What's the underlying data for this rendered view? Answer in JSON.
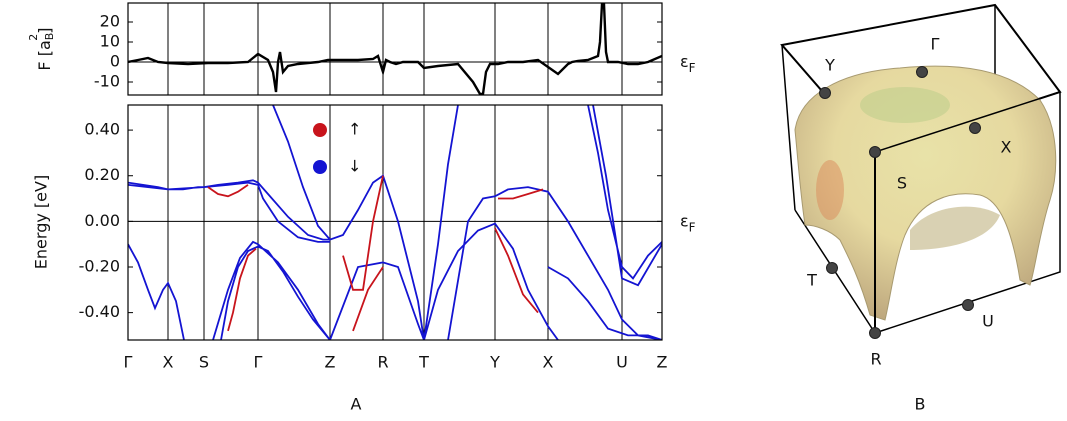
{
  "chart_data": [
    {
      "type": "line",
      "ylabel": {
        "text": "F [a",
        "sub": "B",
        "sup": "2",
        "close": "]"
      },
      "fermi_label": {
        "symbol": "ε",
        "sub": "F"
      },
      "xlim": [
        0,
        534
      ],
      "ylim": [
        -16.5,
        29.5
      ],
      "yticks": [
        -10,
        0,
        10,
        20
      ],
      "series": [
        {
          "color": "#000000",
          "x": [
            0,
            10,
            20,
            30,
            40,
            60,
            80,
            100,
            120,
            130,
            140,
            145,
            148,
            150,
            152,
            155,
            160,
            170,
            190,
            200,
            210,
            230,
            245,
            250,
            255,
            258,
            262,
            268,
            275,
            290,
            296,
            310,
            330,
            345,
            352,
            355,
            358,
            362,
            370,
            380,
            395,
            410,
            430,
            440,
            444,
            450,
            460,
            470,
            472,
            474,
            476,
            478,
            480,
            490,
            500,
            510,
            520,
            534
          ],
          "values": [
            0,
            1,
            2,
            0,
            -0.5,
            -1,
            -0.5,
            -0.5,
            0,
            4,
            1,
            -5,
            -15,
            0,
            5,
            -5,
            -2,
            -1,
            0,
            1,
            1,
            1,
            1.5,
            3,
            -5,
            1,
            0,
            -1,
            0,
            0,
            -3,
            -2,
            -1,
            -10,
            -16,
            -16,
            -5,
            -1,
            -1,
            0,
            0,
            1,
            -6,
            -1,
            0,
            0.5,
            1,
            3,
            10,
            29,
            29,
            5,
            0,
            0,
            -1,
            -1,
            0,
            3
          ]
        }
      ]
    },
    {
      "type": "line",
      "ylabel": "Energy  [eV]",
      "fermi_label": {
        "symbol": "ε",
        "sub": "F"
      },
      "xlim": [
        0,
        534
      ],
      "ylim": [
        -0.52,
        0.51
      ],
      "xticks": [
        {
          "value": 0,
          "label": "Γ"
        },
        {
          "value": 40,
          "label": "X"
        },
        {
          "value": 76,
          "label": "S"
        },
        {
          "value": 130,
          "label": "Γ"
        },
        {
          "value": 202,
          "label": "Z"
        },
        {
          "value": 255,
          "label": "R"
        },
        {
          "value": 296,
          "label": "T"
        },
        {
          "value": 367,
          "label": "Y"
        },
        {
          "value": 420,
          "label": "X"
        },
        {
          "value": 494,
          "label": "U"
        },
        {
          "value": 534,
          "label": "Z"
        }
      ],
      "yticks": [
        {
          "value": -0.4,
          "label": "-0.40"
        },
        {
          "value": -0.2,
          "label": "-0.20"
        },
        {
          "value": 0,
          "label": "0.00"
        },
        {
          "value": 0.2,
          "label": "0.20"
        },
        {
          "value": 0.4,
          "label": "0.40"
        }
      ],
      "series": [
        {
          "name": "↓",
          "color": "#1414d2",
          "x": [
            0,
            15,
            30,
            40,
            55,
            70,
            76,
            90,
            110,
            125,
            130,
            140,
            160,
            180,
            195,
            202,
            null,
            0,
            20,
            40,
            76,
            100,
            120,
            130,
            135,
            150,
            170,
            190,
            202,
            null,
            145,
            160,
            175,
            190,
            202,
            215,
            230,
            245,
            255,
            270,
            290,
            296,
            null,
            0,
            10,
            20,
            27,
            35,
            40,
            48,
            56,
            null,
            93,
            100,
            110,
            120,
            130,
            140,
            155,
            170,
            185,
            202,
            null,
            85,
            100,
            112,
            125,
            130,
            150,
            170,
            190,
            202,
            null,
            202,
            230,
            255,
            270,
            290,
            296,
            null,
            296,
            310,
            320,
            330,
            null,
            296,
            310,
            330,
            350,
            367,
            385,
            400,
            420,
            430,
            null,
            320,
            340,
            355,
            367,
            380,
            400,
            420,
            440,
            460,
            480,
            494,
            510,
            534,
            null,
            460,
            470,
            480,
            494,
            505,
            520,
            534,
            null,
            465,
            478,
            494,
            510,
            534,
            null,
            420,
            440,
            460,
            480,
            500,
            520,
            534
          ],
          "values": [
            0.17,
            0.16,
            0.15,
            0.14,
            0.14,
            0.15,
            0.15,
            0.16,
            0.17,
            0.18,
            0.17,
            0.12,
            0.02,
            -0.06,
            -0.08,
            -0.08,
            null,
            0.16,
            0.15,
            0.14,
            0.15,
            0.16,
            0.17,
            0.16,
            0.1,
            0.0,
            -0.07,
            -0.09,
            -0.09,
            null,
            0.51,
            0.35,
            0.15,
            -0.02,
            -0.08,
            -0.06,
            0.05,
            0.17,
            0.2,
            0.0,
            -0.35,
            -0.52,
            null,
            -0.1,
            -0.18,
            -0.3,
            -0.38,
            -0.3,
            -0.27,
            -0.35,
            -0.52,
            null,
            -0.52,
            -0.35,
            -0.2,
            -0.13,
            -0.11,
            -0.13,
            -0.22,
            -0.33,
            -0.43,
            -0.52,
            null,
            -0.52,
            -0.3,
            -0.16,
            -0.09,
            -0.1,
            -0.18,
            -0.3,
            -0.45,
            -0.52,
            null,
            -0.52,
            -0.2,
            -0.18,
            -0.2,
            -0.45,
            -0.52,
            null,
            -0.52,
            -0.1,
            0.25,
            0.51,
            null,
            -0.52,
            -0.3,
            -0.13,
            -0.04,
            -0.01,
            -0.12,
            -0.3,
            -0.46,
            -0.52,
            null,
            -0.52,
            0.0,
            0.1,
            0.11,
            0.14,
            0.15,
            0.13,
            0.0,
            -0.15,
            -0.3,
            -0.43,
            -0.5,
            -0.52,
            null,
            0.51,
            0.3,
            0.05,
            -0.2,
            -0.25,
            -0.15,
            -0.09,
            null,
            0.51,
            0.2,
            -0.25,
            -0.28,
            -0.1,
            null,
            -0.2,
            -0.25,
            -0.35,
            -0.47,
            -0.5,
            -0.5,
            -0.52
          ]
        },
        {
          "name": "↑",
          "color": "#c8141c",
          "x": [
            80,
            90,
            100,
            110,
            120,
            null,
            100,
            105,
            112,
            120,
            128,
            null,
            215,
            225,
            235,
            245,
            255,
            null,
            225,
            240,
            255,
            null,
            367,
            380,
            395,
            410,
            null,
            370,
            385,
            400,
            415
          ],
          "values": [
            0.15,
            0.12,
            0.11,
            0.13,
            0.16,
            null,
            -0.48,
            -0.4,
            -0.25,
            -0.15,
            -0.12,
            null,
            -0.15,
            -0.3,
            -0.3,
            0.0,
            0.2,
            null,
            -0.48,
            -0.3,
            -0.2,
            null,
            -0.03,
            -0.15,
            -0.32,
            -0.4,
            null,
            0.1,
            0.1,
            0.12,
            0.14
          ]
        }
      ]
    }
  ],
  "panel_labels": [
    "A",
    "B"
  ],
  "fermi_surface": {
    "points": [
      "Y",
      "Γ",
      "X",
      "S",
      "T",
      "R",
      "U"
    ]
  }
}
